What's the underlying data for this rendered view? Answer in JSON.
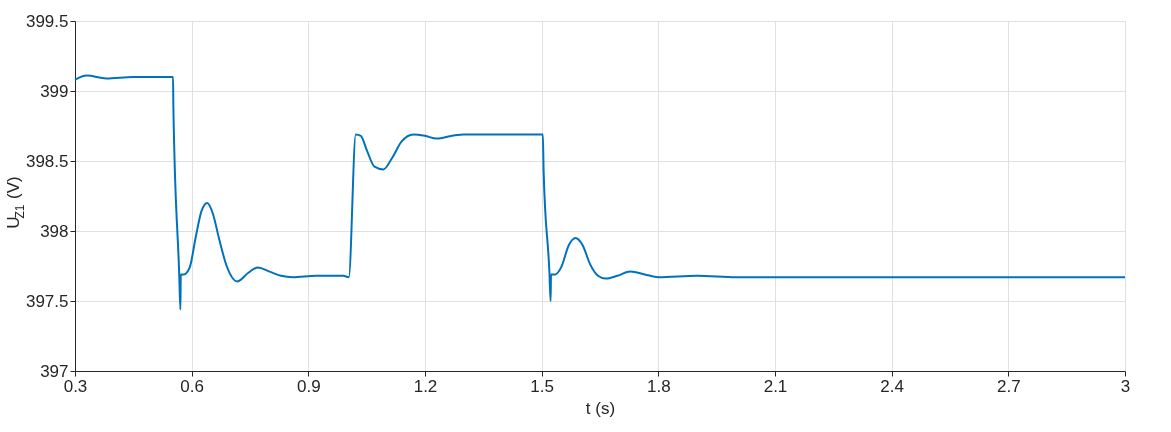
{
  "chart_data": {
    "type": "line",
    "xlabel": "t (s)",
    "ylabel": "U$_{Z1}$ (V)",
    "xlim": [
      0.3,
      3
    ],
    "xticks": [
      0.3,
      0.6,
      0.9,
      1.2,
      1.5,
      1.8,
      2.1,
      2.4,
      2.7,
      3
    ],
    "ylim": [
      397,
      399.5
    ],
    "yticks": [
      397,
      397.5,
      398,
      398.5,
      399,
      399.5
    ],
    "grid": true,
    "line_style": "solid",
    "series": [
      {
        "color": "#0072bd",
        "x": [
          0.3,
          0.33,
          0.38,
          0.45,
          0.5,
          0.552,
          0.553,
          0.568,
          0.571,
          0.572,
          0.58,
          0.595,
          0.61,
          0.625,
          0.64,
          0.655,
          0.67,
          0.69,
          0.717,
          0.745,
          0.77,
          0.8,
          0.83,
          0.86,
          0.92,
          0.99,
          1.004,
          1.022,
          1.035,
          1.05,
          1.07,
          1.093,
          1.115,
          1.14,
          1.17,
          1.2,
          1.23,
          1.27,
          1.3,
          1.4,
          1.503,
          1.505,
          1.52,
          1.523,
          1.524,
          1.535,
          1.55,
          1.57,
          1.587,
          1.605,
          1.625,
          1.645,
          1.664,
          1.695,
          1.728,
          1.765,
          1.8,
          1.9,
          2.0,
          2.5,
          3.0
        ],
        "values": [
          399.08,
          399.11,
          399.09,
          399.1,
          399.1,
          399.1,
          398.88,
          397.69,
          397.44,
          397.69,
          397.69,
          397.74,
          397.95,
          398.14,
          398.2,
          398.12,
          397.95,
          397.75,
          397.64,
          397.7,
          397.74,
          397.71,
          397.68,
          397.67,
          397.68,
          397.68,
          397.67,
          398.69,
          398.68,
          398.58,
          398.46,
          398.44,
          398.52,
          398.64,
          398.69,
          398.68,
          398.66,
          398.68,
          398.69,
          398.69,
          398.69,
          398.43,
          397.7,
          397.5,
          397.69,
          397.69,
          397.74,
          397.9,
          397.95,
          397.9,
          397.76,
          397.68,
          397.66,
          397.68,
          397.71,
          397.69,
          397.67,
          397.68,
          397.67,
          397.67,
          397.67
        ]
      }
    ]
  }
}
